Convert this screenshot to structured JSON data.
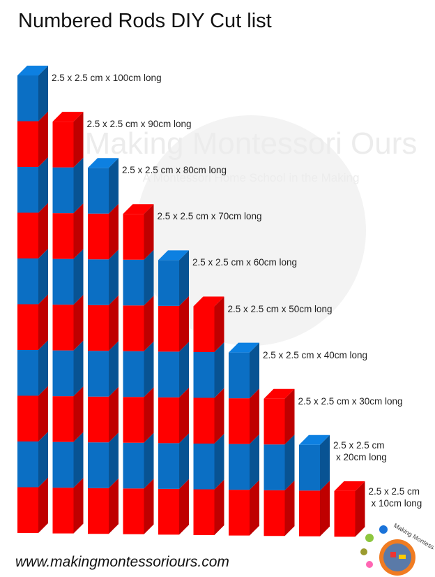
{
  "title": "Numbered Rods DIY Cut list",
  "footer_url": "www.makingmontessoriours.com",
  "watermark": {
    "brand": "Making Montessori Ours",
    "tagline": "A Montessori Home School in the Making"
  },
  "logo": {
    "text": "Making Montessori Ours"
  },
  "colors": {
    "red": "#ff0000",
    "blue": "#0b6fc4"
  },
  "rods": [
    {
      "segments": 10,
      "label_lines": [
        "2.5 x 2.5 cm x 100cm long"
      ]
    },
    {
      "segments": 9,
      "label_lines": [
        "2.5 x 2.5 cm x 90cm long"
      ]
    },
    {
      "segments": 8,
      "label_lines": [
        "2.5 x 2.5 cm x 80cm long"
      ]
    },
    {
      "segments": 7,
      "label_lines": [
        "2.5 x 2.5 cm x 70cm long"
      ]
    },
    {
      "segments": 6,
      "label_lines": [
        "2.5 x 2.5 cm x 60cm long"
      ]
    },
    {
      "segments": 5,
      "label_lines": [
        "2.5 x 2.5 cm x 50cm long"
      ]
    },
    {
      "segments": 4,
      "label_lines": [
        "2.5 x 2.5 cm x 40cm long"
      ]
    },
    {
      "segments": 3,
      "label_lines": [
        "2.5 x 2.5 cm x 30cm long"
      ]
    },
    {
      "segments": 2,
      "label_lines": [
        "2.5 x 2.5 cm",
        "x 20cm long"
      ]
    },
    {
      "segments": 1,
      "label_lines": [
        "2.5 x 2.5 cm",
        "x 10cm long"
      ]
    }
  ]
}
